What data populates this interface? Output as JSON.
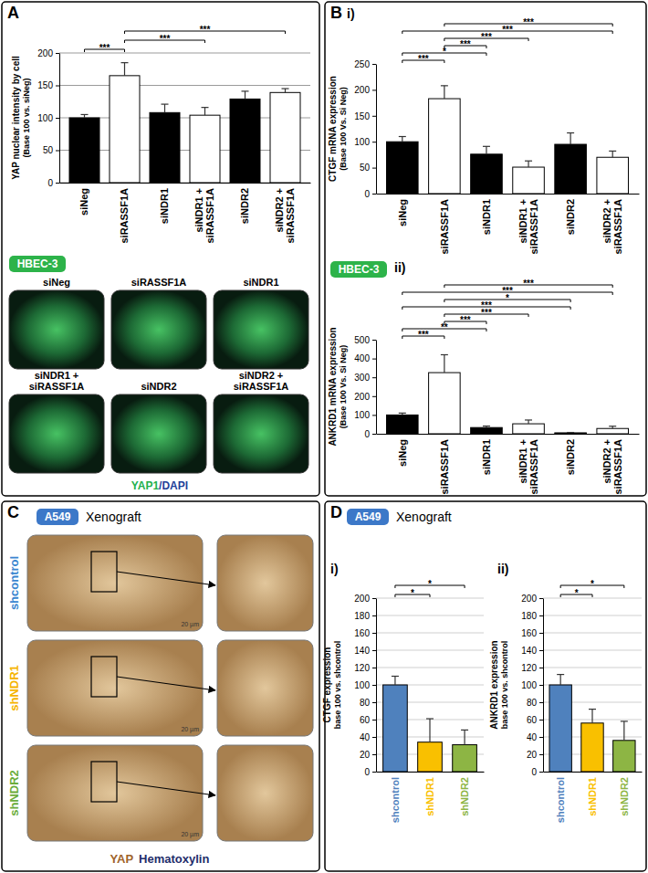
{
  "figure": {
    "panel_letters": [
      "A",
      "B",
      "C",
      "D"
    ],
    "badges": [
      {
        "text": "HBEC-3",
        "color": "#2db34a"
      },
      {
        "text": "HBEC-3",
        "color": "#2db34a"
      },
      {
        "text": "A549",
        "color": "#3c78c8",
        "caption": "Xenograft"
      },
      {
        "text": "A549",
        "color": "#3c78c8",
        "caption": "Xenograft"
      }
    ],
    "images_a": {
      "labels": [
        "siNeg",
        "siRASSF1A",
        "siNDR1",
        "siNDR1 + siRASSF1A",
        "siNDR2",
        "siNDR2 + siRASSF1A"
      ],
      "stain_labels": [
        {
          "text": "YAP1",
          "color": "#22b14c"
        },
        {
          "text": "/DAPI",
          "color": "#1f3f99"
        }
      ]
    },
    "images_c": {
      "labels": [
        {
          "text": "shcontrol",
          "color": "#3a86d0"
        },
        {
          "text": "shNDR1",
          "color": "#f5b400"
        },
        {
          "text": "shNDR2",
          "color": "#6aad3c"
        }
      ],
      "scale_bar": "20 µm",
      "stain_labels": [
        {
          "text": "YAP",
          "color": "#a0632a"
        },
        {
          "text": "Hematoxylin",
          "color": "#1f2d6b"
        }
      ]
    }
  },
  "chart_data": [
    {
      "type": "bar",
      "categories": [
        "siNeg",
        "siRASSF1A",
        "siNDR1",
        "siNDR1 + siRASSF1A",
        "siNDR2",
        "siNDR2 + siRASSF1A"
      ],
      "values": [
        100,
        165,
        108,
        104,
        129,
        139
      ],
      "errors": [
        5,
        20,
        13,
        12,
        12,
        6
      ],
      "colors": [
        "#000000",
        "#ffffff",
        "#000000",
        "#ffffff",
        "#000000",
        "#ffffff"
      ],
      "ylabel": "YAP nuclear intensity by cell\n(Base 100 vs. siNeg)",
      "ylim": [
        0,
        200
      ],
      "yticks": [
        0,
        50,
        100,
        150,
        200
      ],
      "grid": true,
      "significance": [
        {
          "from": "siNeg",
          "to": "siRASSF1A",
          "label": "***"
        },
        {
          "from": "siRASSF1A",
          "to": "siNDR1 + siRASSF1A",
          "label": "***"
        },
        {
          "from": "siRASSF1A",
          "to": "siNDR2 + siRASSF1A",
          "label": "***"
        }
      ]
    },
    {
      "type": "bar",
      "title": "i)",
      "categories": [
        "siNeg",
        "siRASSF1A",
        "siNDR1",
        "siNDR1 + siRASSF1A",
        "siNDR2",
        "siNDR2 + siRASSF1A"
      ],
      "values": [
        100,
        183,
        76,
        51,
        95,
        70
      ],
      "errors": [
        10,
        25,
        15,
        12,
        22,
        12
      ],
      "colors": [
        "#000000",
        "#ffffff",
        "#000000",
        "#ffffff",
        "#000000",
        "#ffffff"
      ],
      "ylabel": "CTGF mRNA expression\n(Base 100 Vs. Si Neg)",
      "ylim": [
        0,
        250
      ],
      "yticks": [
        0,
        50,
        100,
        150,
        200,
        250
      ],
      "grid": false,
      "significance": [
        {
          "from": "siNeg",
          "to": "siRASSF1A",
          "label": "***"
        },
        {
          "from": "siNeg",
          "to": "siNDR1",
          "label": "*"
        },
        {
          "from": "siRASSF1A",
          "to": "siNDR1",
          "label": "***"
        },
        {
          "from": "siRASSF1A",
          "to": "siNDR1 + siRASSF1A",
          "label": "***"
        },
        {
          "from": "siNeg",
          "to": "siNDR2 + siRASSF1A",
          "label": "***"
        },
        {
          "from": "siRASSF1A",
          "to": "siNDR2 + siRASSF1A",
          "label": "***"
        }
      ]
    },
    {
      "type": "bar",
      "title": "ii)",
      "categories": [
        "siNeg",
        "siRASSF1A",
        "siNDR1",
        "siNDR1 + siRASSF1A",
        "siNDR2",
        "siNDR2 + siRASSF1A"
      ],
      "values": [
        100,
        325,
        33,
        53,
        5,
        28
      ],
      "errors": [
        10,
        95,
        8,
        20,
        2,
        12
      ],
      "colors": [
        "#000000",
        "#ffffff",
        "#000000",
        "#ffffff",
        "#000000",
        "#ffffff"
      ],
      "ylabel": "ANKRD1 mRNA expression\n(Base 100 Vs. Si Neg)",
      "ylim": [
        0,
        500
      ],
      "yticks": [
        0,
        100,
        200,
        300,
        400,
        500
      ],
      "grid": false,
      "significance": [
        {
          "from": "siNeg",
          "to": "siRASSF1A",
          "label": "***"
        },
        {
          "from": "siNeg",
          "to": "siNDR1",
          "label": "**"
        },
        {
          "from": "siRASSF1A",
          "to": "siNDR1",
          "label": "***"
        },
        {
          "from": "siRASSF1A",
          "to": "siNDR1 + siRASSF1A",
          "label": "***"
        },
        {
          "from": "siNeg",
          "to": "siNDR2",
          "label": "***"
        },
        {
          "from": "siRASSF1A",
          "to": "siNDR2",
          "label": "*"
        },
        {
          "from": "siNeg",
          "to": "siNDR2 + siRASSF1A",
          "label": "***"
        },
        {
          "from": "siRASSF1A",
          "to": "siNDR2 + siRASSF1A",
          "label": "***"
        }
      ]
    },
    {
      "type": "bar",
      "title": "i)",
      "categories": [
        "shcontrol",
        "shNDR1",
        "shNDR2"
      ],
      "values": [
        100,
        34,
        31
      ],
      "errors": [
        10,
        27,
        17
      ],
      "colors": [
        "#4f81bd",
        "#f9c000",
        "#8db544"
      ],
      "ylabel": "CTGF expression\nbase 100 vs. shcontrol",
      "ylim": [
        0,
        200
      ],
      "yticks": [
        0,
        20,
        40,
        60,
        80,
        100,
        120,
        140,
        160,
        180,
        200
      ],
      "grid": true,
      "significance": [
        {
          "from": "shcontrol",
          "to": "shNDR1",
          "label": "*"
        },
        {
          "from": "shcontrol",
          "to": "shNDR2",
          "label": "*"
        }
      ]
    },
    {
      "type": "bar",
      "title": "ii)",
      "categories": [
        "shcontrol",
        "shNDR1",
        "shNDR2"
      ],
      "values": [
        100,
        56,
        36
      ],
      "errors": [
        12,
        16,
        22
      ],
      "colors": [
        "#4f81bd",
        "#f9c000",
        "#8db544"
      ],
      "ylabel": "ANKRD1 expression\nbase 100 vs. shcontrol",
      "ylim": [
        0,
        200
      ],
      "yticks": [
        0,
        20,
        40,
        60,
        80,
        100,
        120,
        140,
        160,
        180,
        200
      ],
      "grid": true,
      "significance": [
        {
          "from": "shcontrol",
          "to": "shNDR1",
          "label": "*"
        },
        {
          "from": "shcontrol",
          "to": "shNDR2",
          "label": "*"
        }
      ]
    }
  ]
}
